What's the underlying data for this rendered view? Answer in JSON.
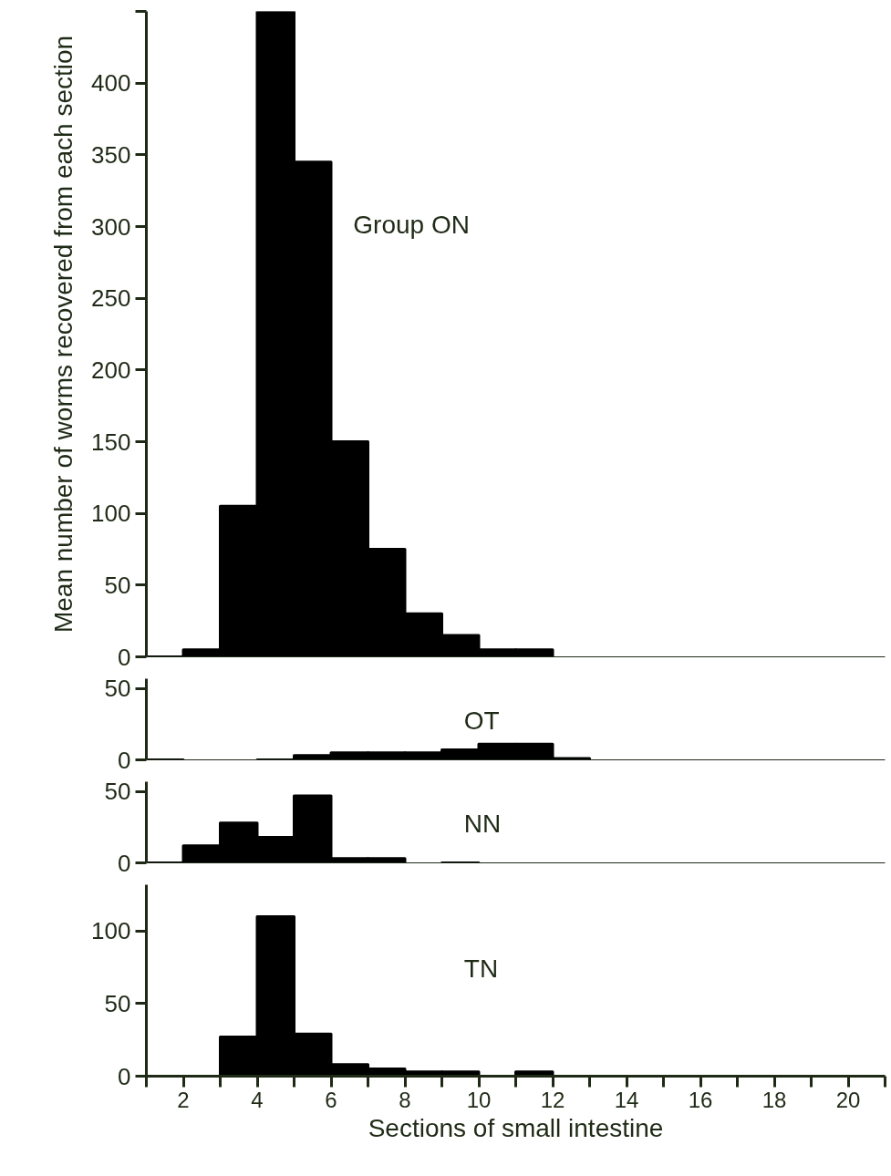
{
  "chart_data": [
    {
      "type": "histogram",
      "title": "Group ON",
      "ylabel": "Mean number of worms recovered from each section",
      "bins": [
        1,
        2,
        3,
        4,
        5,
        6,
        7,
        8,
        9,
        10,
        11,
        12
      ],
      "values": [
        0,
        5,
        105,
        450,
        345,
        150,
        75,
        30,
        15,
        5,
        5
      ],
      "color": "#000000",
      "xlim": [
        1,
        21
      ],
      "ylim": [
        0,
        450
      ],
      "yticks": [
        0,
        50,
        100,
        150,
        200,
        250,
        300,
        350,
        400,
        {
          "value": 450,
          "label": null
        }
      ],
      "tick_labels": "y",
      "grid": false
    },
    {
      "type": "histogram",
      "title": "OT",
      "bins": [
        1,
        2,
        3,
        4,
        5,
        6,
        7,
        8,
        9,
        10,
        11,
        12,
        13
      ],
      "values": [
        0,
        null,
        null,
        0,
        3,
        5,
        5,
        5,
        7,
        11,
        11,
        1
      ],
      "color": "#000000",
      "xlim": [
        1,
        21
      ],
      "ylim": [
        0,
        57
      ],
      "yticks": [
        0,
        50
      ],
      "tick_labels": "y",
      "grid": false
    },
    {
      "type": "histogram",
      "title": "NN",
      "bins": [
        1,
        2,
        3,
        4,
        5,
        6,
        7,
        8,
        9,
        10
      ],
      "values": [
        0,
        12,
        28,
        18,
        47,
        3,
        3,
        null,
        0
      ],
      "color": "#000000",
      "xlim": [
        1,
        21
      ],
      "ylim": [
        0,
        57
      ],
      "yticks": [
        0,
        50
      ],
      "tick_labels": "y",
      "grid": false
    },
    {
      "type": "histogram",
      "title": "TN",
      "xlabel": "Sections of small intestine",
      "bins": [
        1,
        2,
        3,
        4,
        5,
        6,
        7,
        8,
        9,
        10,
        11,
        12
      ],
      "values": [
        0,
        0,
        27,
        110,
        29,
        8,
        5,
        3,
        3,
        null,
        3
      ],
      "color": "#000000",
      "xlim": [
        1,
        21
      ],
      "xticks": [
        {
          "value": 1,
          "label": null
        },
        2,
        {
          "value": 3,
          "label": null
        },
        4,
        {
          "value": 5,
          "label": null
        },
        6,
        {
          "value": 7,
          "label": null
        },
        8,
        {
          "value": 9,
          "label": null
        },
        10,
        {
          "value": 11,
          "label": null
        },
        12,
        {
          "value": 13,
          "label": null
        },
        14,
        {
          "value": 15,
          "label": null
        },
        16,
        {
          "value": 17,
          "label": null
        },
        18,
        {
          "value": 19,
          "label": null
        },
        20,
        {
          "value": 21,
          "label": null
        }
      ],
      "ylim": [
        0,
        132
      ],
      "yticks": [
        0,
        50,
        100
      ],
      "grid": false
    }
  ]
}
